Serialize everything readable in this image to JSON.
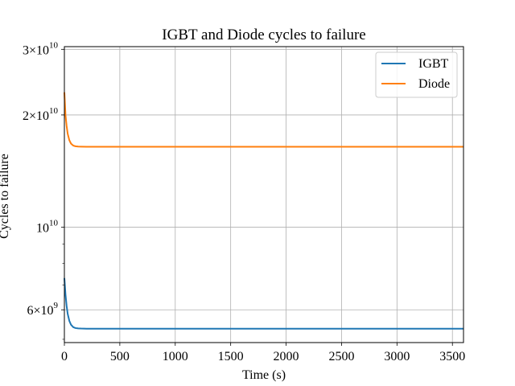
{
  "chart_data": {
    "type": "line",
    "title": "IGBT and Diode cycles to failure",
    "xlabel": "Time (s)",
    "ylabel": "Cycles to failure",
    "xscale": "linear",
    "yscale": "log",
    "xlim": [
      0,
      3600
    ],
    "ylim": [
      4900000000.0,
      30500000000.0
    ],
    "grid": true,
    "legend_position": "top-right",
    "x_ticks": [
      0,
      500,
      1000,
      1500,
      2000,
      2500,
      3000,
      3500
    ],
    "x_tick_labels": [
      "0",
      "500",
      "1000",
      "1500",
      "2000",
      "2500",
      "3000",
      "3500"
    ],
    "y_major_ticks": [
      {
        "value": 6000000000.0,
        "mantissa": "6",
        "times": "×",
        "base": "10",
        "exp": "9"
      },
      {
        "value": 10000000000.0,
        "mantissa": "",
        "times": "",
        "base": "10",
        "exp": "10"
      },
      {
        "value": 20000000000.0,
        "mantissa": "2",
        "times": "×",
        "base": "10",
        "exp": "10"
      },
      {
        "value": 30000000000.0,
        "mantissa": "3",
        "times": "×",
        "base": "10",
        "exp": "10"
      }
    ],
    "y_minor_ticks": [
      5000000000.0,
      7000000000.0,
      8000000000.0,
      9000000000.0
    ],
    "series": [
      {
        "name": "IGBT",
        "color": "#1f77b4",
        "x": [
          0,
          10,
          20,
          30,
          45,
          60,
          80,
          100,
          125,
          150,
          200,
          250,
          300,
          400,
          600,
          1000,
          2000,
          3000,
          3600
        ],
        "y": [
          7300000000.0,
          6600000000.0,
          6150000000.0,
          5850000000.0,
          5600000000.0,
          5470000000.0,
          5390000000.0,
          5360000000.0,
          5350000000.0,
          5345000000.0,
          5340000000.0,
          5340000000.0,
          5340000000.0,
          5340000000.0,
          5340000000.0,
          5340000000.0,
          5340000000.0,
          5340000000.0,
          5340000000.0
        ]
      },
      {
        "name": "Diode",
        "color": "#ff7f0e",
        "x": [
          0,
          10,
          20,
          30,
          45,
          60,
          80,
          100,
          125,
          150,
          200,
          250,
          300,
          400,
          600,
          1000,
          2000,
          3000,
          3600
        ],
        "y": [
          23000000000.0,
          20000000000.0,
          18700000000.0,
          17800000000.0,
          17100000000.0,
          16750000000.0,
          16550000000.0,
          16480000000.0,
          16450000000.0,
          16440000000.0,
          16430000000.0,
          16430000000.0,
          16430000000.0,
          16430000000.0,
          16430000000.0,
          16430000000.0,
          16430000000.0,
          16430000000.0,
          16430000000.0
        ]
      }
    ]
  }
}
